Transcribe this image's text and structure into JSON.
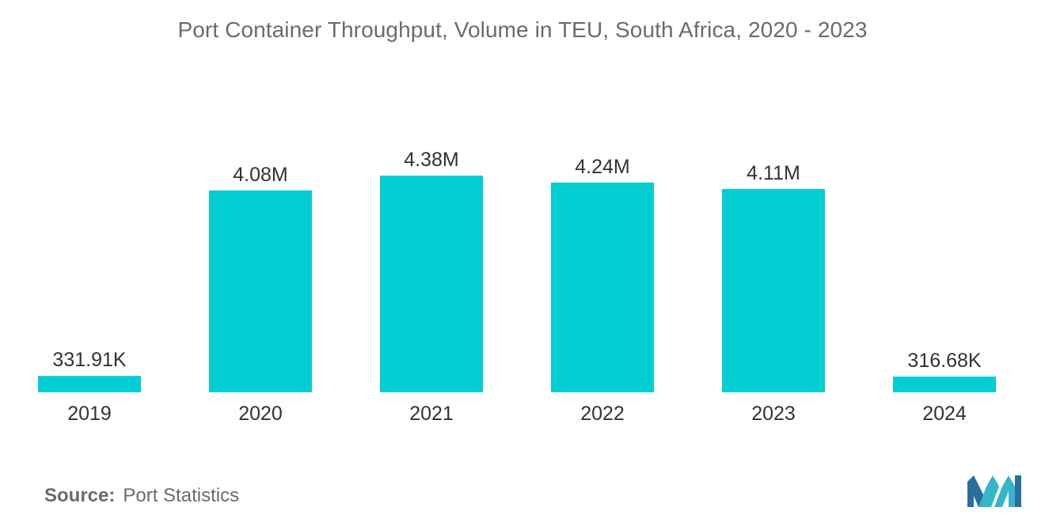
{
  "chart_data": {
    "type": "bar",
    "title": "Port Container Throughput, Volume in TEU, South Africa, 2020 - 2023",
    "categories": [
      "2019",
      "2020",
      "2021",
      "2022",
      "2023",
      "2024"
    ],
    "values": [
      331910,
      4080000,
      4380000,
      4240000,
      4110000,
      316680
    ],
    "value_labels": [
      "331.91K",
      "4.08M",
      "4.38M",
      "4.24M",
      "4.11M",
      "316.68K"
    ],
    "xlabel": "",
    "ylabel": "",
    "ylim": [
      0,
      4380000
    ],
    "grid": false,
    "bar_color": "#00CED1"
  },
  "source": {
    "label": "Source:",
    "text": "Port Statistics"
  },
  "logo": {
    "icon": "mordor-intelligence-logo-icon",
    "colors": [
      "#2a6e9e",
      "#35b5c8"
    ]
  }
}
